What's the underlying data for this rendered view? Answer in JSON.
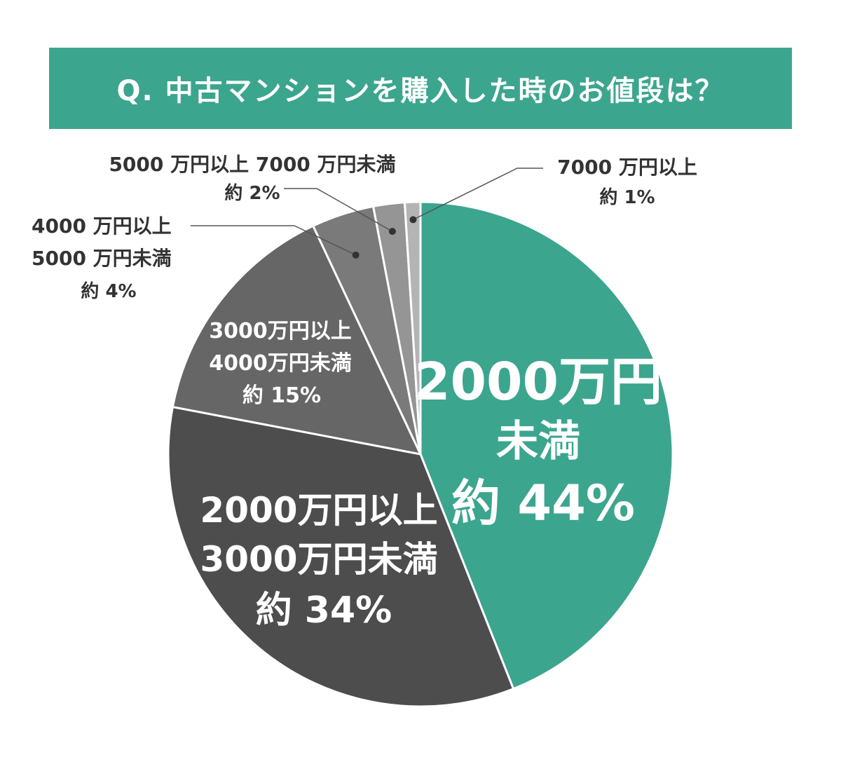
{
  "chart_data": {
    "type": "pie",
    "title": "Q. 中古マンションを購入した時のお値段は？",
    "start": "12 o'clock",
    "direction": "clockwise",
    "slices": [
      {
        "lines": [
          "2000万円",
          "未満"
        ],
        "pct_label": "約 44%",
        "value": 44,
        "color": "#3ca58e"
      },
      {
        "lines": [
          "2000万円以上",
          "3000万円未満"
        ],
        "pct_label": "約 34%",
        "value": 34,
        "color": "#4d4d4d"
      },
      {
        "lines": [
          "3000万円以上",
          "4000万円未満"
        ],
        "pct_label": "約 15%",
        "value": 15,
        "color": "#666666"
      },
      {
        "lines": [
          "4000 万円以上",
          "5000 万円未満"
        ],
        "pct_label": "約 4%",
        "value": 4,
        "color": "#7a7a7a"
      },
      {
        "lines": [
          "5000 万円以上 7000 万円未満"
        ],
        "pct_label": "約 2%",
        "value": 2,
        "color": "#959595"
      },
      {
        "lines": [
          "7000 万円以上"
        ],
        "pct_label": "約 1%",
        "value": 1,
        "color": "#b4b4b4"
      }
    ]
  }
}
